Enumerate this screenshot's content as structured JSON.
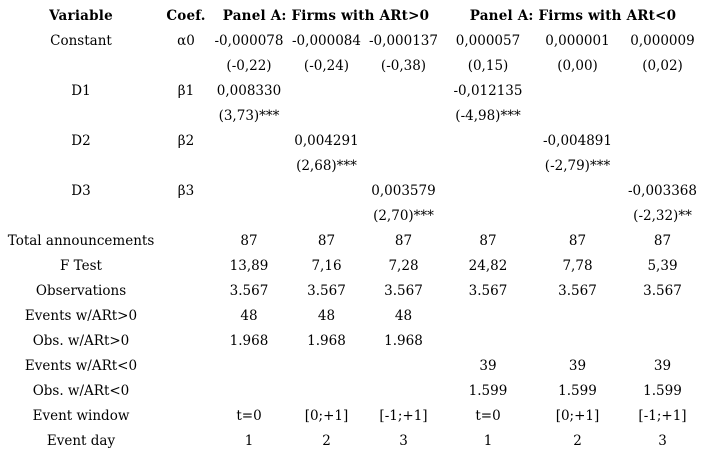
{
  "colors": {
    "text": "#000000",
    "background": "#ffffff"
  },
  "table": {
    "header": {
      "variable": "Variable",
      "coef": "Coef.",
      "panel_positive": "Panel A: Firms with ARt>0",
      "panel_negative": "Panel A: Firms with ARt<0"
    },
    "rows": [
      {
        "label": "Constant",
        "coef": "α0",
        "cells": [
          "-0,000078",
          "-0,000084",
          "-0,000137",
          "0,000057",
          "0,000001",
          "0,000009"
        ]
      },
      {
        "label": "",
        "coef": "",
        "cells": [
          "(-0,22)",
          "(-0,24)",
          "(-0,38)",
          "(0,15)",
          "(0,00)",
          "(0,02)"
        ]
      },
      {
        "label": "D1",
        "coef": "β1",
        "cells": [
          "0,008330",
          "",
          "",
          "-0,012135",
          "",
          ""
        ]
      },
      {
        "label": "",
        "coef": "",
        "cells": [
          "(3,73)***",
          "",
          "",
          "(-4,98)***",
          "",
          ""
        ]
      },
      {
        "label": "D2",
        "coef": "β2",
        "cells": [
          "",
          "0,004291",
          "",
          "",
          "-0,004891",
          ""
        ]
      },
      {
        "label": "",
        "coef": "",
        "cells": [
          "",
          "(2,68)***",
          "",
          "",
          "(-2,79)***",
          ""
        ]
      },
      {
        "label": "D3",
        "coef": "β3",
        "cells": [
          "",
          "",
          "0,003579",
          "",
          "",
          "-0,003368"
        ]
      },
      {
        "label": "",
        "coef": "",
        "cells": [
          "",
          "",
          "(2,70)***",
          "",
          "",
          "(-2,32)**"
        ]
      },
      {
        "label": "Total announcements",
        "coef": "",
        "cells": [
          "87",
          "87",
          "87",
          "87",
          "87",
          "87"
        ]
      },
      {
        "label": "F Test",
        "coef": "",
        "cells": [
          "13,89",
          "7,16",
          "7,28",
          "24,82",
          "7,78",
          "5,39"
        ]
      },
      {
        "label": "Observations",
        "coef": "",
        "cells": [
          "3.567",
          "3.567",
          "3.567",
          "3.567",
          "3.567",
          "3.567"
        ]
      },
      {
        "label": "Events w/ARt>0",
        "coef": "",
        "cells": [
          "48",
          "48",
          "48",
          "",
          "",
          ""
        ]
      },
      {
        "label": "Obs. w/ARt>0",
        "coef": "",
        "cells": [
          "1.968",
          "1.968",
          "1.968",
          "",
          "",
          ""
        ]
      },
      {
        "label": "Events w/ARt<0",
        "coef": "",
        "cells": [
          "",
          "",
          "",
          "39",
          "39",
          "39"
        ]
      },
      {
        "label": "Obs. w/ARt<0",
        "coef": "",
        "cells": [
          "",
          "",
          "",
          "1.599",
          "1.599",
          "1.599"
        ]
      },
      {
        "label": "Event window",
        "coef": "",
        "cells": [
          "t=0",
          "[0;+1]",
          "[-1;+1]",
          "t=0",
          "[0;+1]",
          "[-1;+1]"
        ]
      },
      {
        "label": "Event day",
        "coef": "",
        "cells": [
          "1",
          "2",
          "3",
          "1",
          "2",
          "3"
        ]
      }
    ]
  }
}
